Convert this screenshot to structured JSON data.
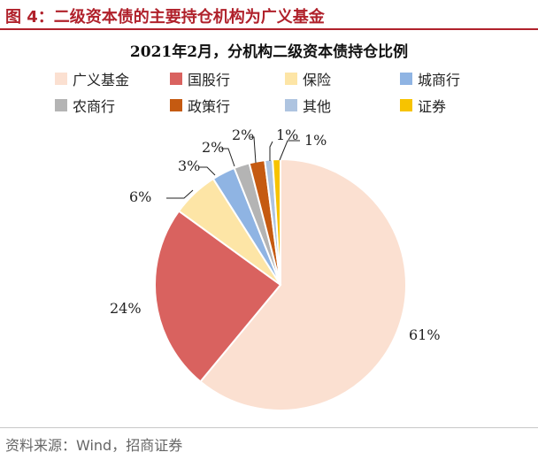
{
  "figure": {
    "caption": "图 4：二级资本债的主要持仓机构为广义基金",
    "source": "资料来源：Wind，招商证券"
  },
  "chart_data": {
    "type": "pie",
    "title": "2021年2月，分机构二级资本债持仓比例",
    "legend_position": "top",
    "slices": [
      {
        "name": "广义基金",
        "value": 61,
        "label": "61%",
        "color": "#fbe0d1"
      },
      {
        "name": "国股行",
        "value": 24,
        "label": "24%",
        "color": "#d9625f"
      },
      {
        "name": "保险",
        "value": 6,
        "label": "6%",
        "color": "#fde5a6"
      },
      {
        "name": "城商行",
        "value": 3,
        "label": "3%",
        "color": "#8fb4e3"
      },
      {
        "name": "农商行",
        "value": 2,
        "label": "2%",
        "color": "#b4b4b4"
      },
      {
        "name": "政策行",
        "value": 2,
        "label": "2%",
        "color": "#c55a11"
      },
      {
        "name": "其他",
        "value": 1,
        "label": "1%",
        "color": "#aec4e0"
      },
      {
        "name": "证券",
        "value": 1,
        "label": "1%",
        "color": "#f7c300"
      }
    ]
  }
}
